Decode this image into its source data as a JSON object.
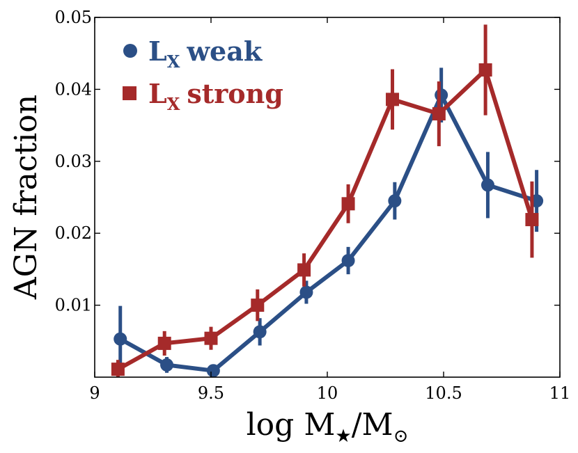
{
  "chart_data": {
    "type": "line",
    "title": "",
    "xlabel": "log M",
    "xlabel_sub_star": "★",
    "xlabel_slash": "/M",
    "xlabel_sub_sun": "⊙",
    "ylabel": "AGN fraction",
    "xlim": [
      9,
      11
    ],
    "ylim": [
      0,
      0.05
    ],
    "xticks": [
      9,
      9.5,
      10,
      10.5,
      11
    ],
    "xtick_labels": [
      "9",
      "9.5",
      "10",
      "10.5",
      "11"
    ],
    "yticks": [
      0.01,
      0.02,
      0.03,
      0.04,
      0.05
    ],
    "ytick_labels": [
      "0.01",
      "0.02",
      "0.03",
      "0.04",
      "0.05"
    ],
    "legend_position": "top-left",
    "series": [
      {
        "name": "L_X weak",
        "label_main": "L",
        "label_sub": "X",
        "label_rest": "weak",
        "marker": "circle",
        "color": "#2b4f86",
        "x": [
          9.11,
          9.31,
          9.51,
          9.71,
          9.91,
          10.09,
          10.29,
          10.49,
          10.69,
          10.9
        ],
        "y": [
          0.0053,
          0.0017,
          0.0009,
          0.0063,
          0.0118,
          0.0162,
          0.0245,
          0.0392,
          0.0267,
          0.0245
        ],
        "yerr": [
          0.0046,
          0.0011,
          0.0004,
          0.0019,
          0.0016,
          0.0019,
          0.0026,
          0.0038,
          0.0046,
          0.0043
        ]
      },
      {
        "name": "L_X strong",
        "label_main": "L",
        "label_sub": "X",
        "label_rest": "strong",
        "marker": "square",
        "color": "#a52a2a",
        "x": [
          9.1,
          9.3,
          9.5,
          9.7,
          9.9,
          10.09,
          10.28,
          10.48,
          10.68,
          10.88
        ],
        "y": [
          0.0011,
          0.0047,
          0.0054,
          0.01,
          0.0149,
          0.0241,
          0.0386,
          0.0366,
          0.0427,
          0.0219
        ],
        "yerr": [
          0.0013,
          0.0017,
          0.0016,
          0.0022,
          0.0023,
          0.0027,
          0.0042,
          0.0045,
          0.0063,
          0.0053
        ]
      }
    ]
  }
}
